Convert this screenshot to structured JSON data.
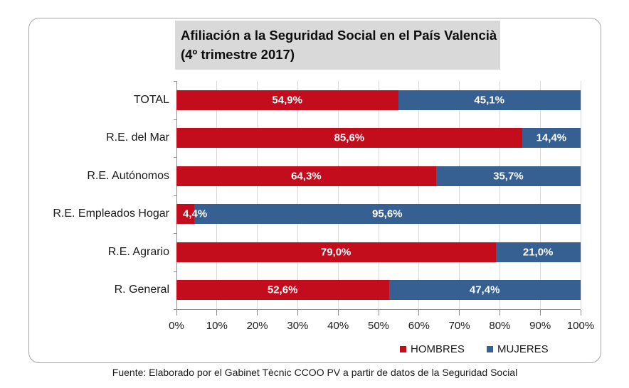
{
  "chart_data": {
    "type": "bar",
    "orientation": "horizontal",
    "stacked": true,
    "units": "percent",
    "title_line1": "Afiliación a la Seguridad Social en el País Valencià",
    "title_line2": "(4º trimestre 2017)",
    "categories": [
      "TOTAL",
      "R.E. del Mar",
      "R.E. Autónomos",
      "R.E. Empleados Hogar",
      "R.E. Agrario",
      "R. General"
    ],
    "series": [
      {
        "name": "HOMBRES",
        "color": "#c30d1d",
        "values": [
          54.9,
          85.6,
          64.3,
          4.4,
          79.0,
          52.6
        ],
        "labels": [
          "54,9%",
          "85,6%",
          "64,3%",
          "4,4%",
          "79,0%",
          "52,6%"
        ]
      },
      {
        "name": "MUJERES",
        "color": "#366092",
        "values": [
          45.1,
          14.4,
          35.7,
          95.6,
          21.0,
          47.4
        ],
        "labels": [
          "45,1%",
          "14,4%",
          "35,7%",
          "95,6%",
          "21,0%",
          "47,4%"
        ]
      }
    ],
    "x_axis": {
      "min": 0,
      "max": 100,
      "step": 10,
      "tick_labels": [
        "0%",
        "10%",
        "20%",
        "30%",
        "40%",
        "50%",
        "60%",
        "70%",
        "80%",
        "90%",
        "100%"
      ]
    },
    "legend": {
      "position": "bottom",
      "items": [
        {
          "label": "HOMBRES",
          "color": "#c30d1d"
        },
        {
          "label": "MUJERES",
          "color": "#366092"
        }
      ]
    },
    "gridlines": true,
    "styles": {
      "title_background": "#d9d9d9",
      "gridline_color": "#d9d9d9",
      "axis_color": "#8c8c8c",
      "frame_border_color": "#a6a6a6",
      "data_label_color": "#ffffff"
    }
  },
  "footer": {
    "text": "Fuente: Elaborado por el Gabinet Tècnic CCOO PV a partir de datos de la Seguridad Social"
  }
}
